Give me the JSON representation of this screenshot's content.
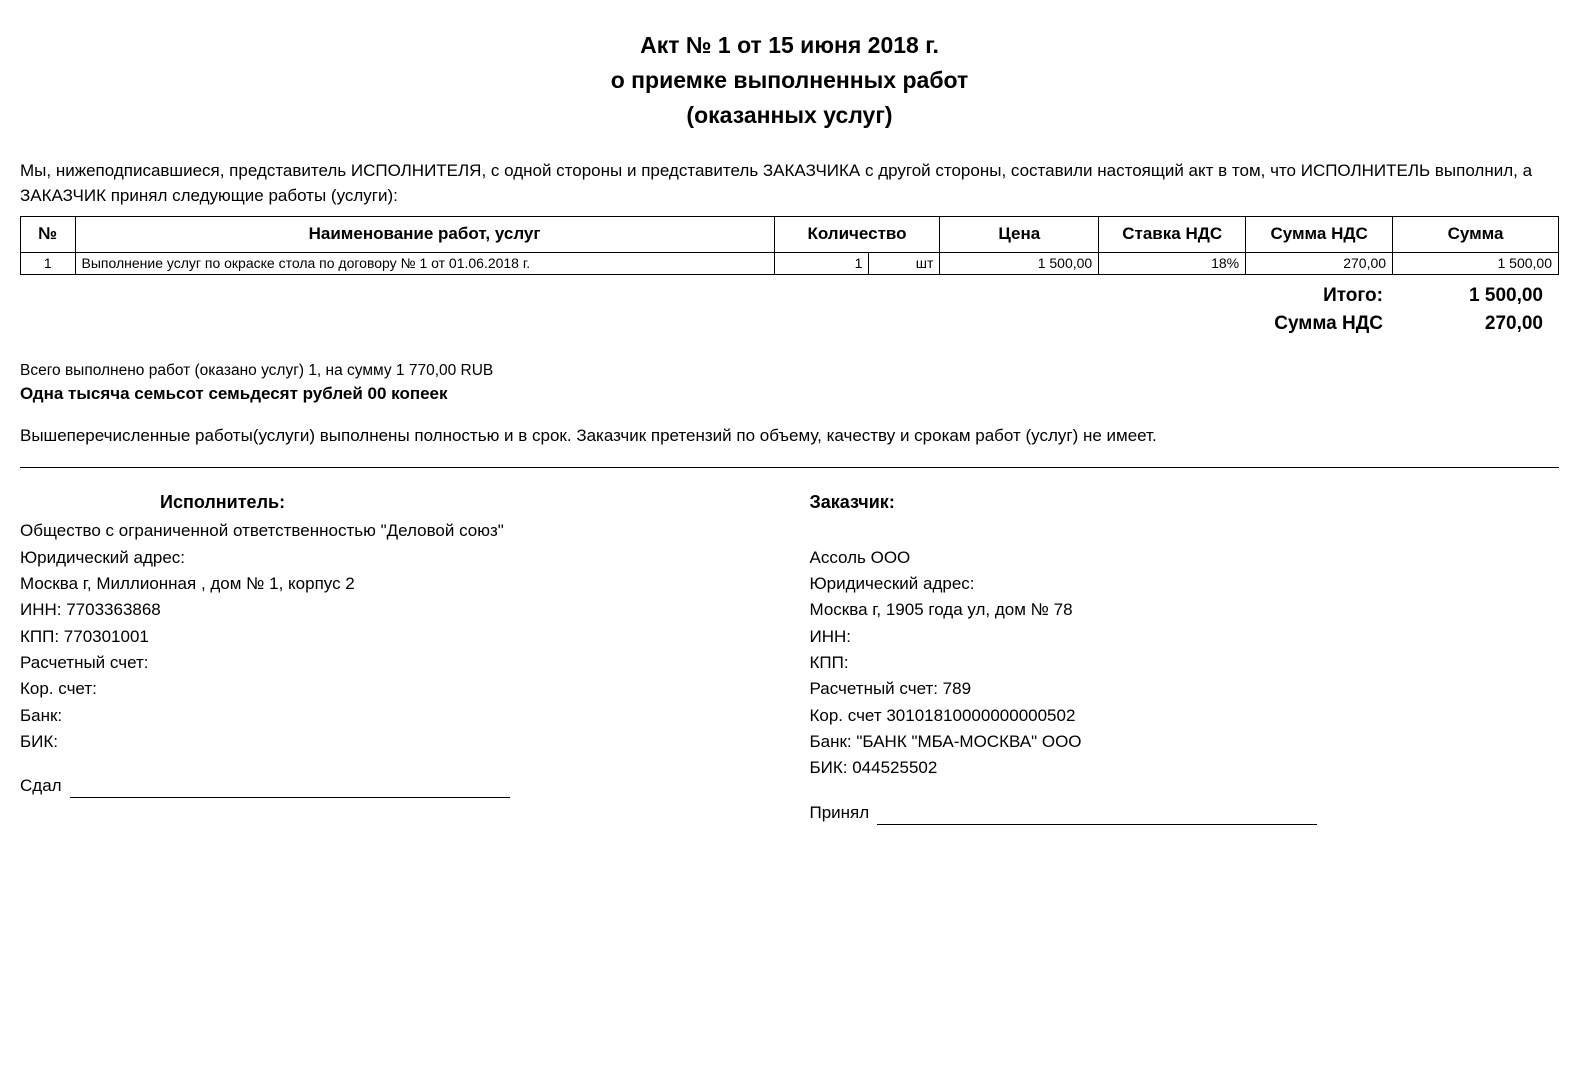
{
  "header": {
    "title": "Акт № 1 от 15 июня 2018 г.",
    "line2": "о приемке выполненных работ",
    "line3": "(оказанных услуг)"
  },
  "intro": " Мы, нижеподписавшиеся,  представитель ИСПОЛНИТЕЛЯ, с одной стороны и  представитель ЗАКАЗЧИКА с другой стороны, составили настоящий акт в том, что ИСПОЛНИТЕЛЬ выполнил, а ЗАКАЗЧИК принял следующие работы (услуги):",
  "table": {
    "columns": {
      "num": "№",
      "name": "Наименование работ, услуг",
      "qty": "Количество",
      "price": "Цена",
      "vat_rate": "Ставка НДС",
      "vat_sum": "Сумма НДС",
      "total": "Сумма"
    },
    "rows": [
      {
        "num": "1",
        "name": "Выполнение услуг по окраске стола по договору № 1 от 01.06.2018 г.",
        "qty": "1",
        "unit": "шт",
        "price": "1 500,00",
        "vat_rate": "18%",
        "vat_sum": "270,00",
        "total": "1 500,00"
      }
    ]
  },
  "totals": {
    "itogo_label": "Итого:",
    "itogo_value": "1 500,00",
    "vat_label": "Сумма НДС",
    "vat_value": "270,00"
  },
  "summary": {
    "line1": "Всего выполнено работ (оказано услуг) 1, на сумму 1 770,00 RUB",
    "line2": "Одна тысяча семьсот семьдесят рублей 00 копеек"
  },
  "closing": "Вышеперечисленные работы(услуги) выполнены полностью и в срок. Заказчик претензий по объему, качеству и срокам работ (услуг) не имеет.",
  "executor": {
    "header": "Исполнитель:",
    "name": "Общество с ограниченной ответственностью \"Деловой союз\"",
    "addr_label": "Юридический адрес:",
    "addr": "Москва г, Миллионная , дом № 1, корпус 2",
    "inn": "ИНН:   7703363868",
    "kpp": "КПП:   770301001",
    "account": "Расчетный счет:",
    "kor": "Кор. счет:",
    "bank": "Банк:",
    "bik": "БИК:",
    "sign_label": "Сдал"
  },
  "customer": {
    "header": "Заказчик:",
    "name": "Ассоль ООО",
    "addr_label": "Юридический адрес:",
    "addr": "Москва г, 1905 года ул, дом № 78",
    "inn": "ИНН:",
    "kpp": "КПП:",
    "account": "Расчетный счет: 789",
    "kor": "Кор. счет 30101810000000000502",
    "bank": "Банк:   \"БАНК \"МБА-МОСКВА\" ООО",
    "bik": "БИК:   044525502",
    "sign_label": "Принял"
  }
}
